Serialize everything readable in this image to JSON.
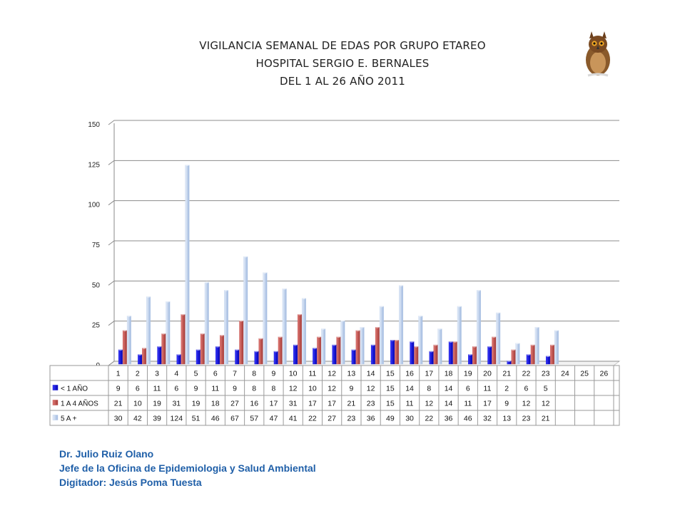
{
  "title_lines": [
    "VIGILANCIA SEMANAL DE EDAS POR GRUPO ETAREO",
    "HOSPITAL SERGIO E. BERNALES",
    "DEL 1 AL 26 AÑO 2011"
  ],
  "chart_data": {
    "type": "bar",
    "categories": [
      "1",
      "2",
      "3",
      "4",
      "5",
      "6",
      "7",
      "8",
      "9",
      "10",
      "11",
      "12",
      "13",
      "14",
      "15",
      "16",
      "17",
      "18",
      "19",
      "20",
      "21",
      "22",
      "23",
      "24",
      "25",
      "26"
    ],
    "series": [
      {
        "name": "< 1 AÑO",
        "color": "#1010cc",
        "values": [
          9,
          6,
          11,
          6,
          9,
          11,
          9,
          8,
          8,
          12,
          10,
          12,
          9,
          12,
          15,
          14,
          8,
          14,
          6,
          11,
          2,
          6,
          5,
          null,
          null,
          null
        ]
      },
      {
        "name": "1 A 4 AÑOS",
        "color": "#c0504d",
        "values": [
          21,
          10,
          19,
          31,
          19,
          18,
          27,
          16,
          17,
          31,
          17,
          17,
          21,
          23,
          15,
          11,
          12,
          14,
          11,
          17,
          9,
          12,
          12,
          null,
          null,
          null
        ]
      },
      {
        "name": "5 A +",
        "color": "#b9cdea",
        "values": [
          30,
          42,
          39,
          124,
          51,
          46,
          67,
          57,
          47,
          41,
          22,
          27,
          23,
          36,
          49,
          30,
          22,
          36,
          46,
          32,
          13,
          23,
          21,
          null,
          null,
          null
        ]
      }
    ],
    "y_ticks": [
      0,
      25,
      50,
      75,
      100,
      125,
      150
    ],
    "ylim": [
      0,
      150
    ],
    "grid": true,
    "legend_placement": "data-table-left"
  },
  "footer": {
    "author": "Dr.  Julio Ruiz Olano",
    "position": "Jefe de la Oficina de Epidemiologia y  Salud Ambiental",
    "typist": "Digitador: Jesús Poma Tuesta"
  },
  "logo_icon": "owl-icon"
}
